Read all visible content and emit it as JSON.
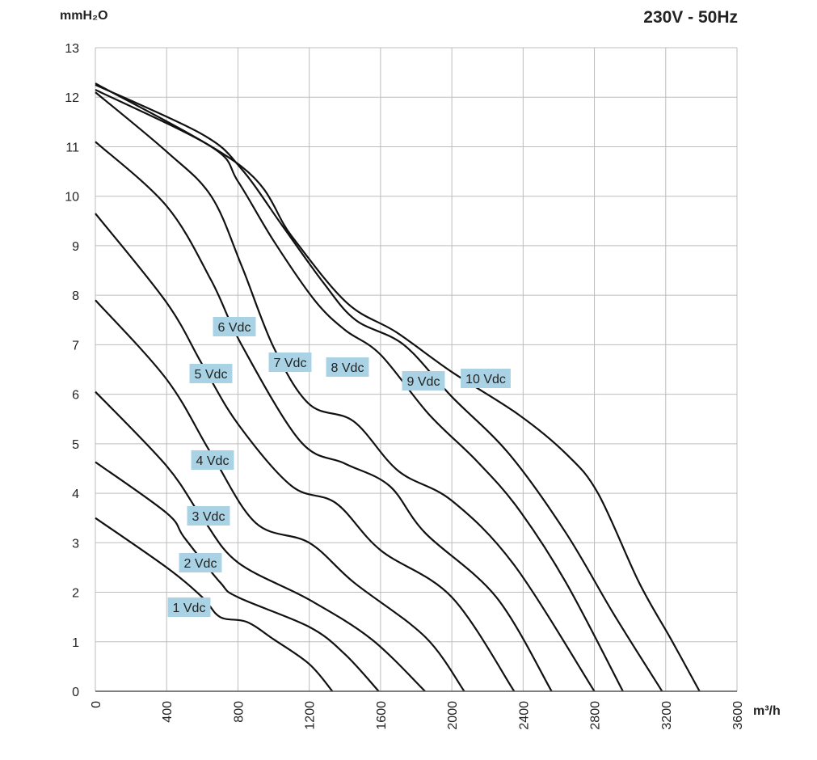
{
  "chart_data": {
    "type": "line",
    "title": "230V - 50Hz",
    "y_label": "mmH₂O",
    "x_label": "m³/h",
    "xlim": [
      0,
      3600
    ],
    "ylim": [
      0,
      13
    ],
    "xticks": [
      0,
      400,
      800,
      1200,
      1600,
      2000,
      2400,
      2800,
      3200,
      3600
    ],
    "yticks": [
      0,
      1,
      2,
      3,
      4,
      5,
      6,
      7,
      8,
      9,
      10,
      11,
      12,
      13
    ],
    "grid": true,
    "label_color": "#a9d3e5",
    "series": [
      {
        "name": "1 Vdc",
        "color": "#111111",
        "x": [
          0,
          400,
          600,
          700,
          850,
          1000,
          1200,
          1330
        ],
        "values": [
          3.5,
          2.5,
          1.9,
          1.5,
          1.4,
          1.05,
          0.55,
          0
        ]
      },
      {
        "name": "2 Vdc",
        "color": "#111111",
        "x": [
          0,
          400,
          500,
          700,
          800,
          1200,
          1400,
          1590
        ],
        "values": [
          4.63,
          3.6,
          3.1,
          2.2,
          1.9,
          1.3,
          0.75,
          0
        ]
      },
      {
        "name": "3 Vdc",
        "color": "#111111",
        "x": [
          0,
          400,
          600,
          800,
          1200,
          1550,
          1850
        ],
        "values": [
          6.05,
          4.55,
          3.5,
          2.6,
          1.85,
          1.05,
          0
        ]
      },
      {
        "name": "4 Vdc",
        "color": "#111111",
        "x": [
          0,
          400,
          650,
          900,
          1200,
          1450,
          1850,
          2070
        ],
        "values": [
          7.9,
          6.3,
          4.8,
          3.4,
          3.0,
          2.2,
          1.1,
          0
        ]
      },
      {
        "name": "5 Vdc",
        "color": "#111111",
        "x": [
          0,
          400,
          600,
          800,
          1100,
          1350,
          1600,
          2000,
          2350
        ],
        "values": [
          9.65,
          7.85,
          6.6,
          5.4,
          4.15,
          3.8,
          2.85,
          1.9,
          0
        ]
      },
      {
        "name": "6 Vdc",
        "color": "#111111",
        "x": [
          0,
          400,
          650,
          820,
          1150,
          1400,
          1650,
          1850,
          2250,
          2560
        ],
        "values": [
          11.1,
          9.8,
          8.3,
          7.0,
          5.05,
          4.6,
          4.15,
          3.2,
          1.9,
          0
        ]
      },
      {
        "name": "7 Vdc",
        "color": "#111111",
        "x": [
          0,
          400,
          650,
          820,
          1000,
          1200,
          1450,
          1700,
          2000,
          2350,
          2800
        ],
        "values": [
          12.1,
          10.9,
          10.0,
          8.6,
          6.95,
          5.8,
          5.45,
          4.45,
          3.85,
          2.55,
          0
        ]
      },
      {
        "name": "8 Vdc",
        "color": "#111111",
        "x": [
          0,
          650,
          800,
          1000,
          1230,
          1400,
          1600,
          1870,
          2140,
          2370,
          2640,
          2960
        ],
        "values": [
          12.15,
          11.0,
          10.3,
          9.1,
          7.9,
          7.3,
          6.8,
          5.6,
          4.65,
          3.7,
          2.2,
          0
        ]
      },
      {
        "name": "9 Vdc",
        "color": "#111111",
        "x": [
          0,
          600,
          820,
          1050,
          1280,
          1460,
          1730,
          2000,
          2320,
          2640,
          2910,
          3180
        ],
        "values": [
          12.25,
          11.25,
          10.55,
          9.4,
          8.25,
          7.5,
          7.0,
          5.95,
          4.8,
          3.2,
          1.55,
          0
        ]
      },
      {
        "name": "10 Vdc",
        "color": "#111111",
        "x": [
          0,
          820,
          1100,
          1410,
          1690,
          2000,
          2370,
          2640,
          2820,
          3050,
          3230,
          3390
        ],
        "values": [
          12.28,
          10.6,
          9.2,
          7.85,
          7.25,
          6.45,
          5.6,
          4.8,
          4.0,
          2.2,
          1.05,
          0
        ]
      }
    ]
  }
}
